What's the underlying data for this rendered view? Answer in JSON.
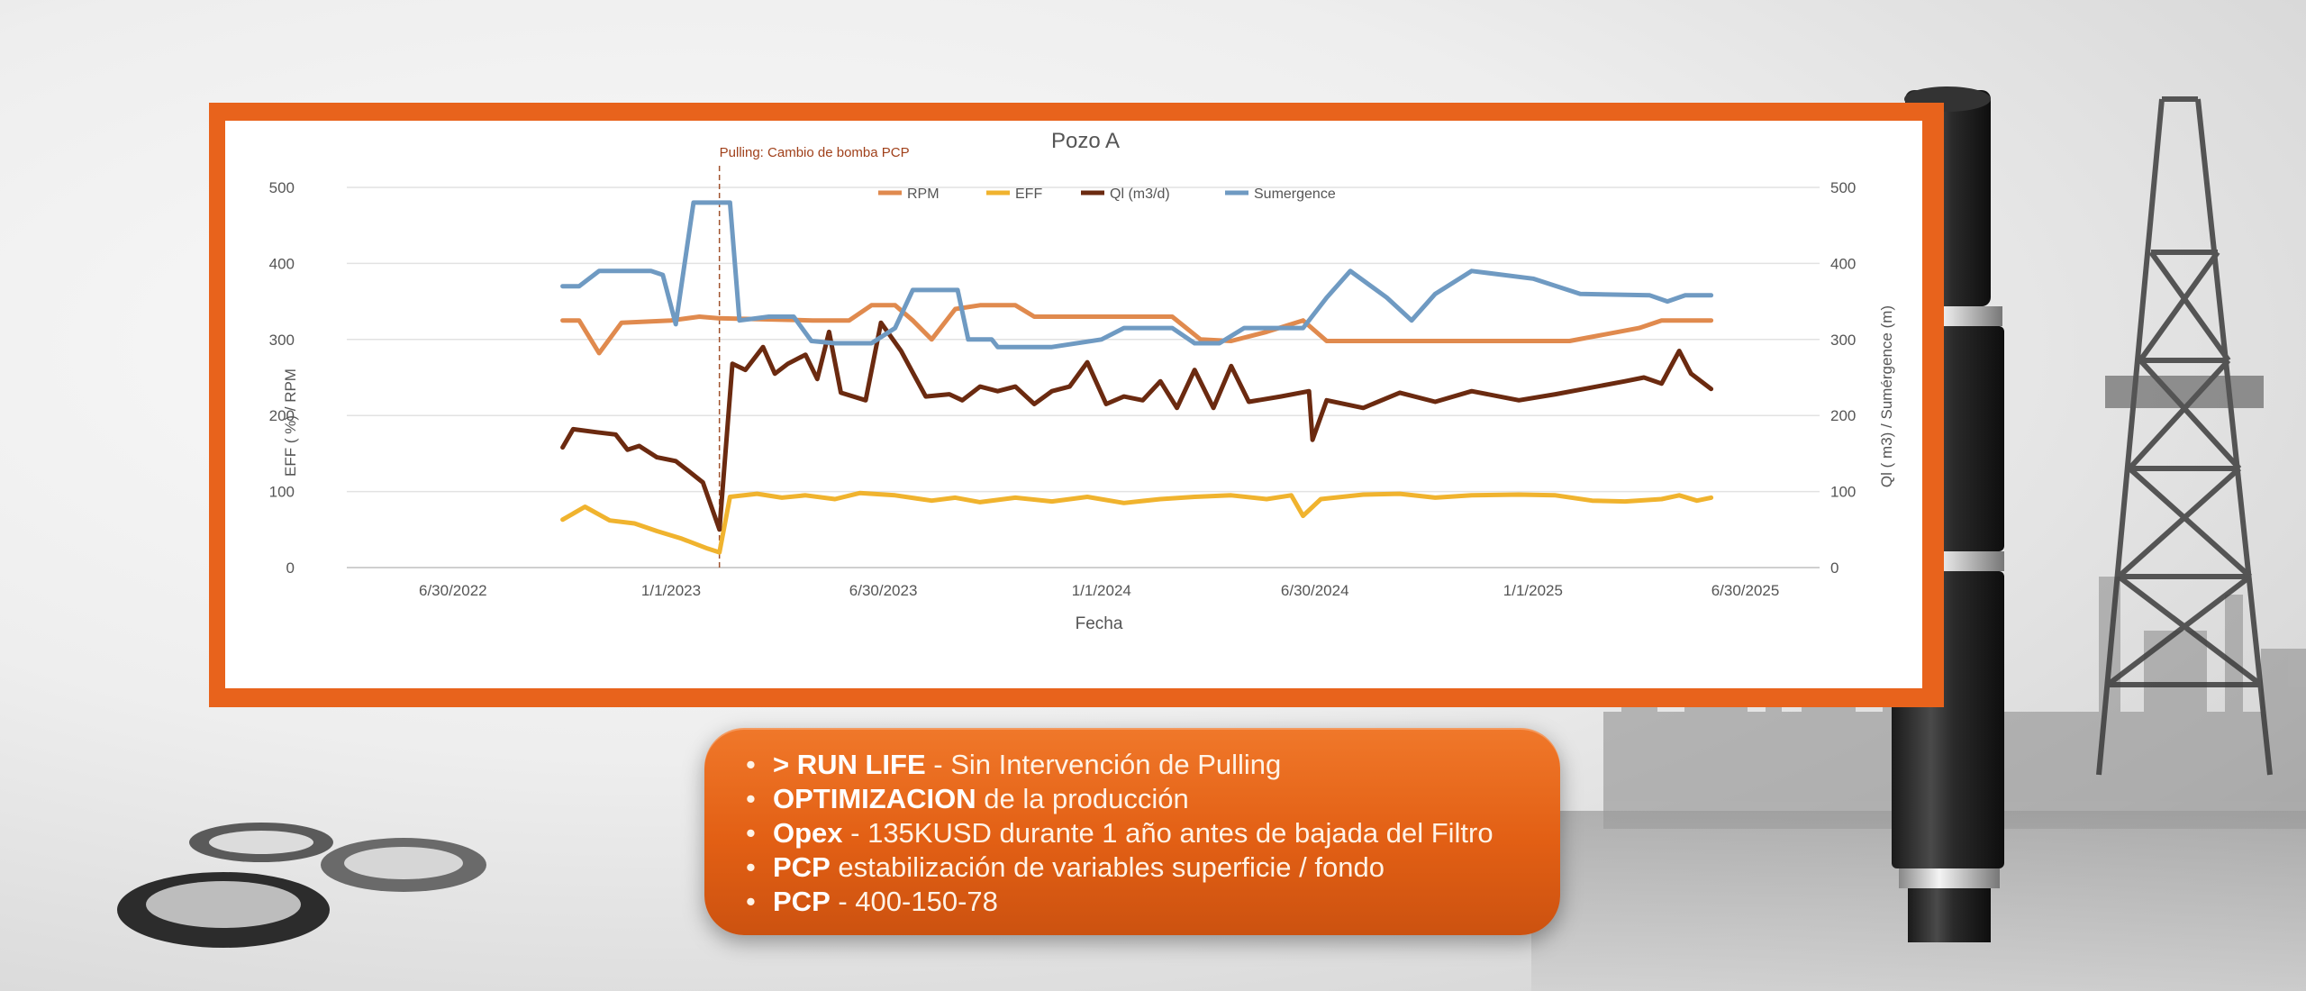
{
  "chart_data": {
    "type": "line",
    "title": "Pozo A",
    "xlabel": "Fecha",
    "ylabel_left": "EFF ( %) / RPM",
    "ylabel_right": "Ql ( m3) / Sumérgence (m)",
    "ylim": [
      0,
      500
    ],
    "y_ticks": [
      "0",
      "100",
      "200",
      "300",
      "400",
      "500"
    ],
    "x_range": [
      "2022-04-01",
      "2025-09-01"
    ],
    "x_ticks": [
      {
        "date": "2022-06-30",
        "label": "6/30/2022"
      },
      {
        "date": "2023-01-01",
        "label": "1/1/2023"
      },
      {
        "date": "2023-06-30",
        "label": "6/30/2023"
      },
      {
        "date": "2024-01-01",
        "label": "1/1/2024"
      },
      {
        "date": "2024-06-30",
        "label": "6/30/2024"
      },
      {
        "date": "2025-01-01",
        "label": "1/1/2025"
      },
      {
        "date": "2025-06-30",
        "label": "6/30/2025"
      }
    ],
    "grid": true,
    "legend_position": "top",
    "annotation": {
      "date": "2023-02-11",
      "text": "Pulling: Cambio de bomba PCP"
    },
    "series": [
      {
        "name": "RPM",
        "color": "#e08a4e",
        "points": [
          [
            "2022-10-01",
            325
          ],
          [
            "2022-10-15",
            325
          ],
          [
            "2022-11-01",
            282
          ],
          [
            "2022-11-20",
            322
          ],
          [
            "2023-01-01",
            325
          ],
          [
            "2023-01-25",
            330
          ],
          [
            "2023-02-10",
            328
          ],
          [
            "2023-05-01",
            325
          ],
          [
            "2023-06-01",
            325
          ],
          [
            "2023-06-20",
            345
          ],
          [
            "2023-07-10",
            345
          ],
          [
            "2023-07-25",
            325
          ],
          [
            "2023-08-10",
            300
          ],
          [
            "2023-08-30",
            340
          ],
          [
            "2023-09-20",
            345
          ],
          [
            "2023-10-20",
            345
          ],
          [
            "2023-11-05",
            330
          ],
          [
            "2024-01-01",
            330
          ],
          [
            "2024-03-01",
            330
          ],
          [
            "2024-03-25",
            300
          ],
          [
            "2024-04-20",
            298
          ],
          [
            "2024-05-20",
            310
          ],
          [
            "2024-06-20",
            325
          ],
          [
            "2024-07-10",
            298
          ],
          [
            "2024-10-01",
            298
          ],
          [
            "2025-02-01",
            298
          ],
          [
            "2025-04-01",
            315
          ],
          [
            "2025-04-20",
            325
          ],
          [
            "2025-06-01",
            325
          ]
        ]
      },
      {
        "name": "EFF",
        "color": "#f0b32e",
        "points": [
          [
            "2022-10-01",
            63
          ],
          [
            "2022-10-20",
            80
          ],
          [
            "2022-11-10",
            62
          ],
          [
            "2022-12-01",
            58
          ],
          [
            "2022-12-20",
            48
          ],
          [
            "2023-01-10",
            38
          ],
          [
            "2023-02-01",
            25
          ],
          [
            "2023-02-11",
            20
          ],
          [
            "2023-02-20",
            93
          ],
          [
            "2023-03-15",
            97
          ],
          [
            "2023-04-05",
            92
          ],
          [
            "2023-04-25",
            95
          ],
          [
            "2023-05-20",
            90
          ],
          [
            "2023-06-10",
            98
          ],
          [
            "2023-07-10",
            95
          ],
          [
            "2023-08-10",
            88
          ],
          [
            "2023-08-30",
            92
          ],
          [
            "2023-09-20",
            86
          ],
          [
            "2023-10-20",
            92
          ],
          [
            "2023-11-20",
            87
          ],
          [
            "2023-12-20",
            93
          ],
          [
            "2024-01-20",
            85
          ],
          [
            "2024-02-20",
            90
          ],
          [
            "2024-03-20",
            93
          ],
          [
            "2024-04-20",
            95
          ],
          [
            "2024-05-20",
            90
          ],
          [
            "2024-06-10",
            95
          ],
          [
            "2024-06-20",
            68
          ],
          [
            "2024-07-05",
            90
          ],
          [
            "2024-08-10",
            96
          ],
          [
            "2024-09-10",
            97
          ],
          [
            "2024-10-10",
            92
          ],
          [
            "2024-11-10",
            95
          ],
          [
            "2024-12-20",
            96
          ],
          [
            "2025-01-20",
            95
          ],
          [
            "2025-02-20",
            88
          ],
          [
            "2025-03-20",
            87
          ],
          [
            "2025-04-20",
            90
          ],
          [
            "2025-05-05",
            95
          ],
          [
            "2025-05-20",
            88
          ],
          [
            "2025-06-01",
            92
          ]
        ]
      },
      {
        "name": "Ql (m3/d)",
        "color": "#6b2a10",
        "points": [
          [
            "2022-10-01",
            158
          ],
          [
            "2022-10-10",
            182
          ],
          [
            "2022-10-30",
            178
          ],
          [
            "2022-11-15",
            175
          ],
          [
            "2022-11-25",
            155
          ],
          [
            "2022-12-05",
            160
          ],
          [
            "2022-12-20",
            145
          ],
          [
            "2023-01-05",
            140
          ],
          [
            "2023-01-15",
            128
          ],
          [
            "2023-01-28",
            112
          ],
          [
            "2023-02-11",
            50
          ],
          [
            "2023-02-22",
            268
          ],
          [
            "2023-03-05",
            260
          ],
          [
            "2023-03-20",
            290
          ],
          [
            "2023-03-30",
            255
          ],
          [
            "2023-04-10",
            268
          ],
          [
            "2023-04-25",
            280
          ],
          [
            "2023-05-05",
            248
          ],
          [
            "2023-05-15",
            310
          ],
          [
            "2023-05-25",
            230
          ],
          [
            "2023-06-15",
            220
          ],
          [
            "2023-06-28",
            322
          ],
          [
            "2023-07-15",
            285
          ],
          [
            "2023-08-05",
            225
          ],
          [
            "2023-08-25",
            228
          ],
          [
            "2023-09-05",
            220
          ],
          [
            "2023-09-20",
            238
          ],
          [
            "2023-10-05",
            232
          ],
          [
            "2023-10-20",
            238
          ],
          [
            "2023-11-05",
            215
          ],
          [
            "2023-11-20",
            232
          ],
          [
            "2023-12-05",
            238
          ],
          [
            "2023-12-20",
            270
          ],
          [
            "2024-01-05",
            215
          ],
          [
            "2024-01-20",
            225
          ],
          [
            "2024-02-05",
            220
          ],
          [
            "2024-02-20",
            245
          ],
          [
            "2024-03-05",
            210
          ],
          [
            "2024-03-20",
            260
          ],
          [
            "2024-04-05",
            210
          ],
          [
            "2024-04-20",
            265
          ],
          [
            "2024-05-05",
            218
          ],
          [
            "2024-06-01",
            225
          ],
          [
            "2024-06-25",
            232
          ],
          [
            "2024-06-28",
            168
          ],
          [
            "2024-07-10",
            220
          ],
          [
            "2024-08-10",
            210
          ],
          [
            "2024-09-10",
            230
          ],
          [
            "2024-10-10",
            218
          ],
          [
            "2024-11-10",
            232
          ],
          [
            "2024-12-20",
            220
          ],
          [
            "2025-01-20",
            228
          ],
          [
            "2025-03-20",
            245
          ],
          [
            "2025-04-05",
            250
          ],
          [
            "2025-04-20",
            242
          ],
          [
            "2025-05-05",
            285
          ],
          [
            "2025-05-15",
            255
          ],
          [
            "2025-06-01",
            235
          ]
        ]
      },
      {
        "name": "Sumergence",
        "color": "#6f9ac2",
        "points": [
          [
            "2022-10-01",
            370
          ],
          [
            "2022-10-15",
            370
          ],
          [
            "2022-11-01",
            390
          ],
          [
            "2022-12-15",
            390
          ],
          [
            "2022-12-25",
            385
          ],
          [
            "2023-01-05",
            320
          ],
          [
            "2023-01-20",
            480
          ],
          [
            "2023-02-05",
            480
          ],
          [
            "2023-02-20",
            480
          ],
          [
            "2023-02-28",
            325
          ],
          [
            "2023-03-25",
            330
          ],
          [
            "2023-04-15",
            330
          ],
          [
            "2023-04-30",
            298
          ],
          [
            "2023-05-20",
            295
          ],
          [
            "2023-06-20",
            295
          ],
          [
            "2023-07-10",
            315
          ],
          [
            "2023-07-25",
            365
          ],
          [
            "2023-08-20",
            365
          ],
          [
            "2023-09-01",
            365
          ],
          [
            "2023-09-10",
            300
          ],
          [
            "2023-09-30",
            300
          ],
          [
            "2023-10-05",
            290
          ],
          [
            "2023-11-20",
            290
          ],
          [
            "2024-01-01",
            300
          ],
          [
            "2024-01-20",
            315
          ],
          [
            "2024-03-01",
            315
          ],
          [
            "2024-03-20",
            295
          ],
          [
            "2024-04-10",
            295
          ],
          [
            "2024-05-01",
            315
          ],
          [
            "2024-06-20",
            315
          ],
          [
            "2024-07-10",
            355
          ],
          [
            "2024-07-30",
            390
          ],
          [
            "2024-08-30",
            355
          ],
          [
            "2024-09-20",
            325
          ],
          [
            "2024-10-10",
            360
          ],
          [
            "2024-11-10",
            390
          ],
          [
            "2025-01-01",
            380
          ],
          [
            "2025-02-10",
            360
          ],
          [
            "2025-04-10",
            358
          ],
          [
            "2025-04-25",
            350
          ],
          [
            "2025-05-10",
            358
          ],
          [
            "2025-06-01",
            358
          ]
        ]
      }
    ]
  },
  "callout": {
    "items": [
      {
        "bold": "> RUN LIFE",
        "rest": " - Sin Intervención de Pulling"
      },
      {
        "bold": "OPTIMIZACION",
        "rest": " de la producción"
      },
      {
        "bold": "Opex",
        "rest": " - 135KUSD durante 1 año antes de bajada del Filtro"
      },
      {
        "bold": "PCP",
        "rest": " estabilización de variables superficie / fondo"
      },
      {
        "bold": "PCP",
        "rest": " - 400-150-78"
      }
    ]
  }
}
